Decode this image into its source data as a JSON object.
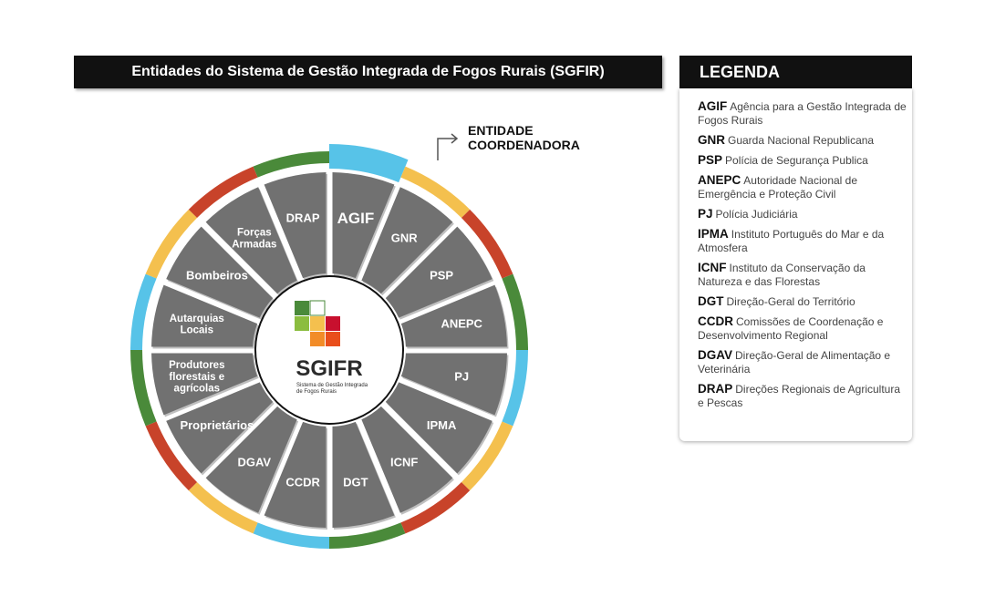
{
  "title": "Entidades do Sistema de Gestão Integrada de Fogos Rurais (SGFIR)",
  "coordinator_label": [
    "ENTIDADE",
    "COORDENADORA"
  ],
  "center": {
    "title": "SGIFR",
    "subtitle_lines": [
      "Sistema de Gestão Integrada",
      "de Fogos Rurais"
    ]
  },
  "colors": {
    "segment": "#717171",
    "green": "#4a8a3a",
    "red": "#c8432a",
    "yellow": "#f4c04e",
    "blue": "#57c3e8"
  },
  "segments": [
    {
      "label": [
        "AGIF"
      ],
      "band": "blue",
      "highlight": true
    },
    {
      "label": [
        "GNR"
      ],
      "band": "yellow"
    },
    {
      "label": [
        "PSP"
      ],
      "band": "red"
    },
    {
      "label": [
        "ANEPC"
      ],
      "band": "green"
    },
    {
      "label": [
        "PJ"
      ],
      "band": "blue"
    },
    {
      "label": [
        "IPMA"
      ],
      "band": "yellow"
    },
    {
      "label": [
        "ICNF"
      ],
      "band": "red"
    },
    {
      "label": [
        "DGT"
      ],
      "band": "green"
    },
    {
      "label": [
        "CCDR"
      ],
      "band": "blue"
    },
    {
      "label": [
        "DGAV"
      ],
      "band": "yellow"
    },
    {
      "label": [
        "Proprietários"
      ],
      "band": "red"
    },
    {
      "label": [
        "Produtores",
        "florestais e",
        "agrícolas"
      ],
      "band": "green"
    },
    {
      "label": [
        "Autarquias",
        "Locais"
      ],
      "band": "blue"
    },
    {
      "label": [
        "Bombeiros"
      ],
      "band": "yellow"
    },
    {
      "label": [
        "Forças",
        "Armadas"
      ],
      "band": "red"
    },
    {
      "label": [
        "DRAP"
      ],
      "band": "green"
    }
  ],
  "legend": {
    "header": "LEGENDA",
    "items": [
      {
        "abbr": "AGIF",
        "text": "Agência para a Gestão Integrada de Fogos Rurais"
      },
      {
        "abbr": "GNR",
        "text": "Guarda Nacional Republicana"
      },
      {
        "abbr": "PSP",
        "text": "Polícia de Segurança Publica"
      },
      {
        "abbr": "ANEPC",
        "text": "Autoridade Nacional de Emergência e Proteção  Civil"
      },
      {
        "abbr": "PJ",
        "text": "Polícia Judiciária"
      },
      {
        "abbr": "IPMA",
        "text": "Instituto Português do Mar e da Atmosfera"
      },
      {
        "abbr": "ICNF",
        "text": "Instituto da Conservação da Natureza e das Florestas"
      },
      {
        "abbr": "DGT",
        "text": "Direção-Geral do Território"
      },
      {
        "abbr": "CCDR",
        "text": "Comissões de Coordenação e Desenvolvimento Regional"
      },
      {
        "abbr": "DGAV",
        "text": "Direção-Geral de Alimentação e Veterinária"
      },
      {
        "abbr": "DRAP",
        "text": "Direções Regionais de Agricultura e Pescas"
      }
    ]
  }
}
